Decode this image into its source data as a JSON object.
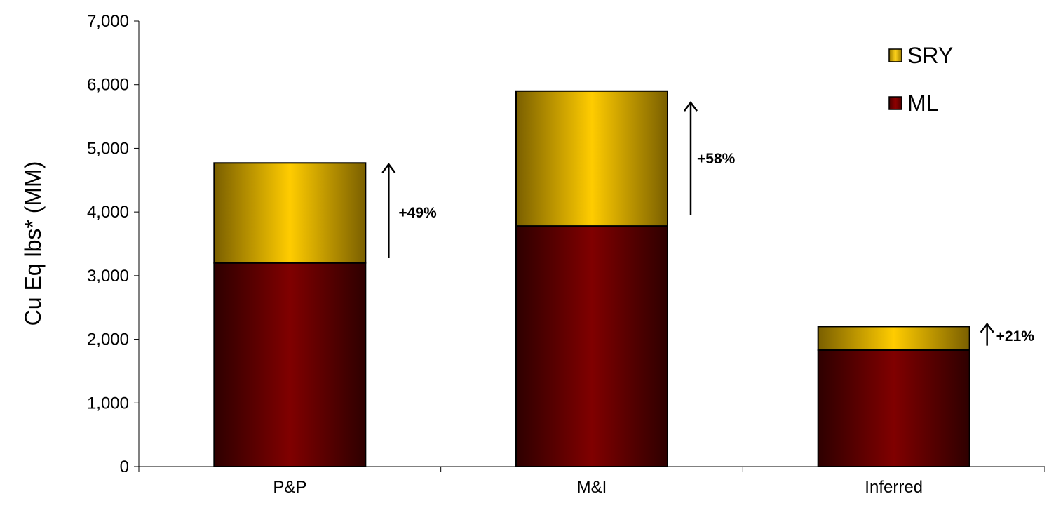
{
  "chart_data": {
    "type": "bar",
    "stacked": true,
    "title": "",
    "xlabel": "",
    "ylabel": "Cu Eq lbs* (MM)",
    "ylim": [
      0,
      7000
    ],
    "yticks": [
      0,
      1000,
      2000,
      3000,
      4000,
      5000,
      6000,
      7000
    ],
    "ytick_labels": [
      "0",
      "1,000",
      "2,000",
      "3,000",
      "4,000",
      "5,000",
      "6,000",
      "7,000"
    ],
    "categories": [
      "P&P",
      "M&I",
      "Inferred"
    ],
    "series": [
      {
        "name": "ML",
        "values": [
          3200,
          3780,
          1830
        ],
        "color": "#7a0000"
      },
      {
        "name": "SRY",
        "values": [
          1570,
          2120,
          370
        ],
        "color": "#f5c400"
      }
    ],
    "annotations": [
      "+49%",
      "+58%",
      "+21%"
    ],
    "legend_position": "top-right",
    "grid": false
  }
}
